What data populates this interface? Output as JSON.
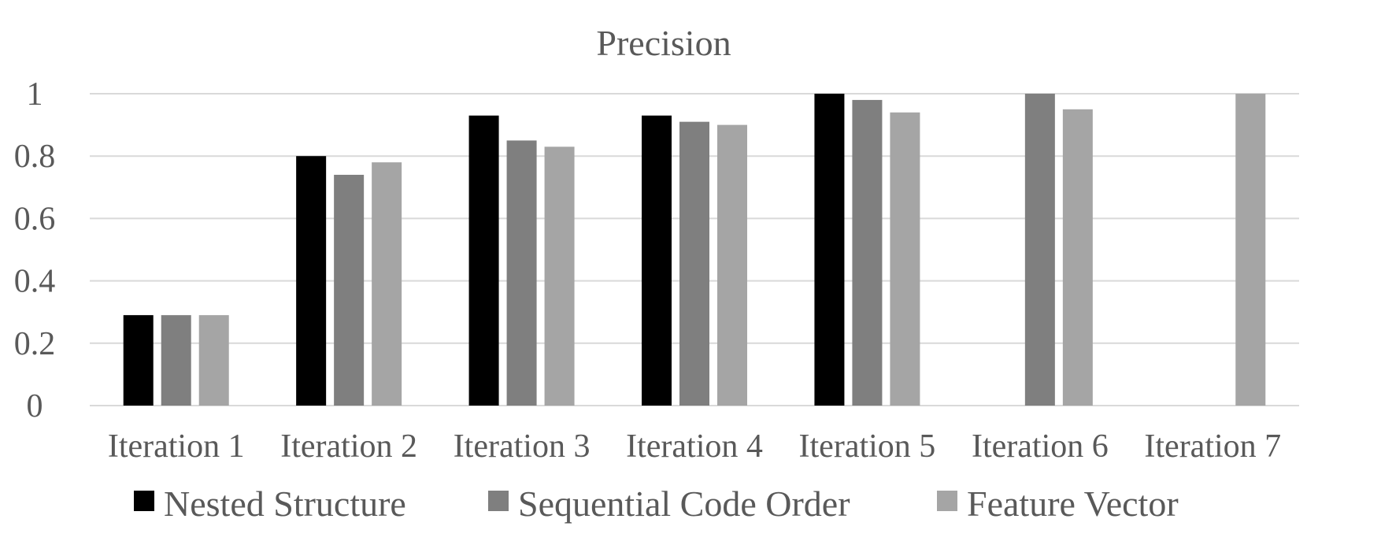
{
  "chart_data": {
    "type": "bar",
    "title": "Precision",
    "xlabel": "",
    "ylabel": "",
    "ylim": [
      0,
      1
    ],
    "yticks": [
      0,
      0.2,
      0.4,
      0.6,
      0.8,
      1
    ],
    "ytick_labels": [
      "0",
      "0.2",
      "0.4",
      "0.6",
      "0.8",
      "1"
    ],
    "grid": true,
    "legend_position": "bottom",
    "categories": [
      "Iteration 1",
      "Iteration 2",
      "Iteration 3",
      "Iteration 4",
      "Iteration 5",
      "Iteration 6",
      "Iteration 7"
    ],
    "series": [
      {
        "name": "Nested Structure",
        "color": "#000000",
        "values": [
          0.29,
          0.8,
          0.93,
          0.93,
          1.0,
          null,
          null
        ]
      },
      {
        "name": "Sequential Code Order",
        "color": "#7f7f7f",
        "values": [
          0.29,
          0.74,
          0.85,
          0.91,
          0.98,
          1.0,
          null
        ]
      },
      {
        "name": "Feature Vector",
        "color": "#a5a5a5",
        "values": [
          0.29,
          0.78,
          0.83,
          0.9,
          0.94,
          0.95,
          1.0
        ]
      }
    ]
  }
}
